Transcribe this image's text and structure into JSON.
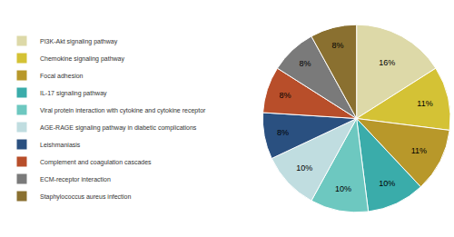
{
  "chart_data": {
    "type": "pie",
    "categories": [
      "PI3K-Akt signaling pathway",
      "Chemokine signaling pathway",
      "Focal adhesion",
      "IL-17 signaling pathway",
      "Viral protein interaction with cytokine and cytokine receptor",
      "AGE-RAGE signaling pathway in diabetic complications",
      "Leishmaniasis",
      "Complement and coagulation cascades",
      "ECM-receptor interaction",
      "Staphylococcus aureus infection"
    ],
    "values": [
      16,
      11,
      11,
      10,
      10,
      10,
      8,
      8,
      8,
      8
    ],
    "value_labels": [
      "16%",
      "11%",
      "11%",
      "10%",
      "10%",
      "10%",
      "8%",
      "8%",
      "8%",
      "8%"
    ],
    "colors": [
      "#ddd9a8",
      "#d4c235",
      "#b8982a",
      "#3aacaa",
      "#6dc8c0",
      "#c0dde0",
      "#2a5080",
      "#b84e2a",
      "#7a7a7a",
      "#8a7030"
    ],
    "data_labels": true,
    "legend": "left"
  }
}
